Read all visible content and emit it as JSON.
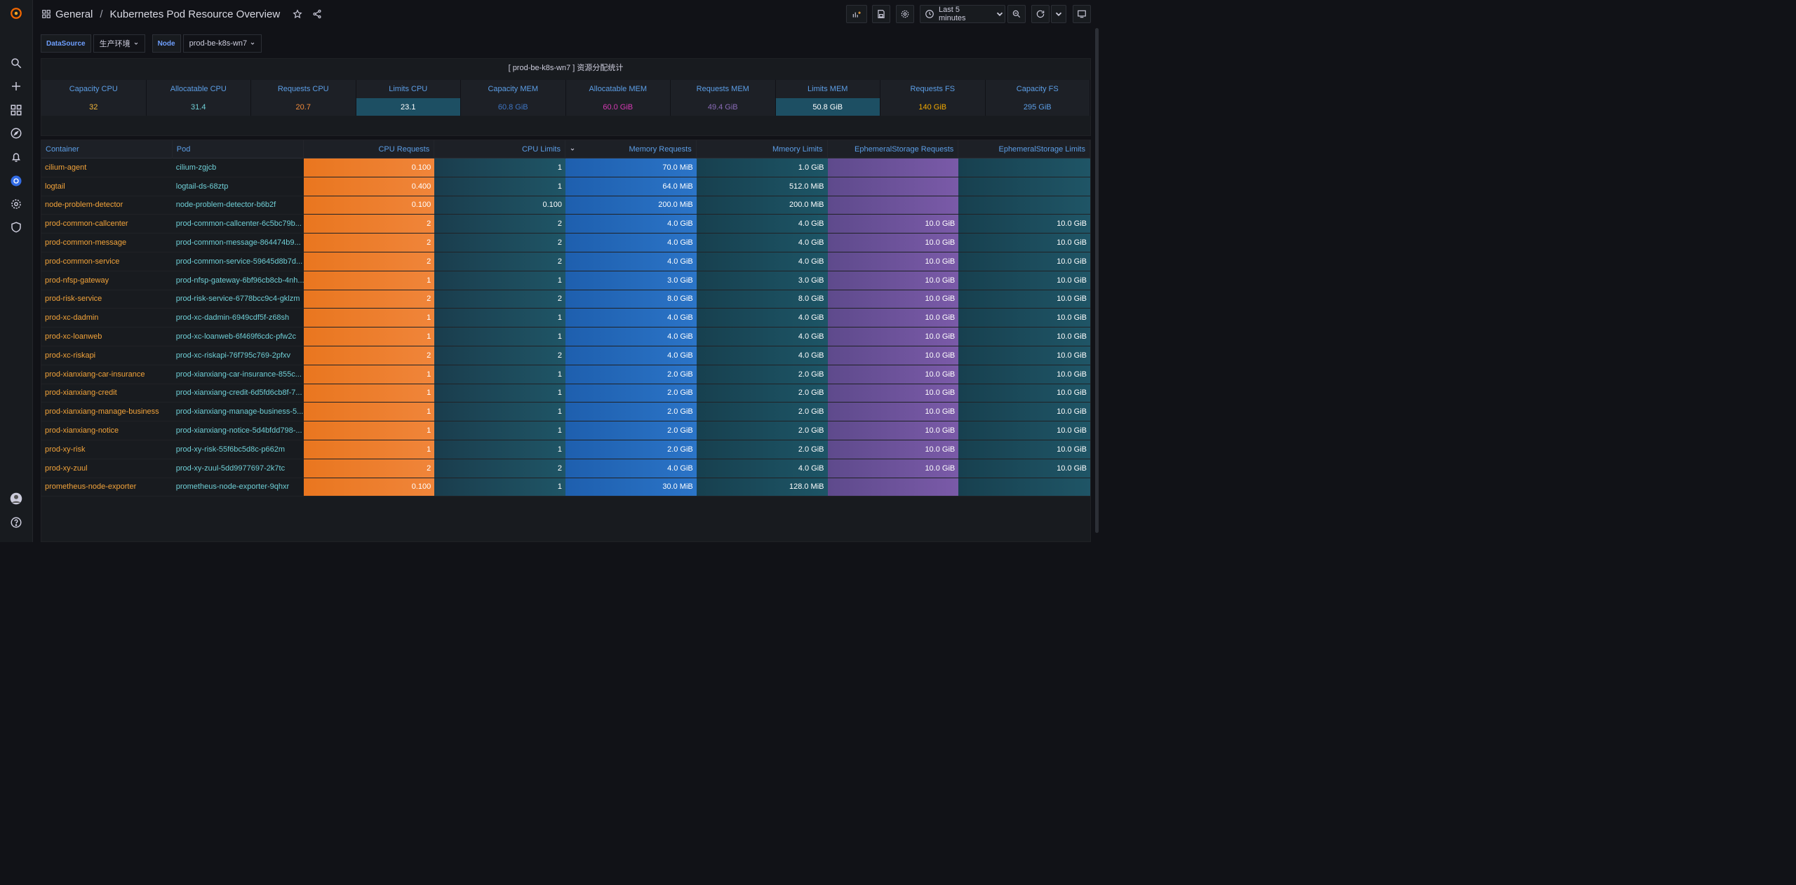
{
  "header": {
    "folder": "General",
    "separator": "/",
    "title": "Kubernetes Pod Resource Overview",
    "time_range": "Last 5 minutes"
  },
  "variables": [
    {
      "label": "DataSource",
      "value": "生产环境"
    },
    {
      "label": "Node",
      "value": "prod-be-k8s-wn7"
    }
  ],
  "stats_panel": {
    "title": "[ prod-be-k8s-wn7 ] 资源分配统计",
    "columns": [
      "Capacity CPU",
      "Allocatable CPU",
      "Requests CPU",
      "Limits CPU",
      "Capacity MEM",
      "Allocatable MEM",
      "Requests MEM",
      "Limits MEM",
      "Requests FS",
      "Capacity FS"
    ],
    "values": [
      "32",
      "31.4",
      "20.7",
      "23.1",
      "60.8 GiB",
      "60.0 GiB",
      "49.4 GiB",
      "50.8 GiB",
      "140 GiB",
      "295 GiB"
    ],
    "value_colors": [
      "#f2b53a",
      "#6fcfd6",
      "#f08a3a",
      "#ffffff",
      "#3e74c2",
      "#d63ab4",
      "#8a6bb8",
      "#ffffff",
      "#f2a900",
      "#5c9ee6"
    ]
  },
  "table": {
    "columns": [
      "Container",
      "Pod",
      "CPU Requests",
      "CPU Limits",
      "Memory Requests",
      "Mmeory Limits",
      "EphemeralStorage Requests",
      "EphemeralStorage Limits"
    ],
    "rows": [
      [
        "cilium-agent",
        "cilium-zgjcb",
        "0.100",
        "1",
        "70.0 MiB",
        "1.0 GiB",
        "",
        ""
      ],
      [
        "logtail",
        "logtail-ds-68ztp",
        "0.400",
        "1",
        "64.0 MiB",
        "512.0 MiB",
        "",
        ""
      ],
      [
        "node-problem-detector",
        "node-problem-detector-b6b2f",
        "0.100",
        "0.100",
        "200.0 MiB",
        "200.0 MiB",
        "",
        ""
      ],
      [
        "prod-common-callcenter",
        "prod-common-callcenter-6c5bc79b...",
        "2",
        "2",
        "4.0 GiB",
        "4.0 GiB",
        "10.0 GiB",
        "10.0 GiB"
      ],
      [
        "prod-common-message",
        "prod-common-message-864474b9...",
        "2",
        "2",
        "4.0 GiB",
        "4.0 GiB",
        "10.0 GiB",
        "10.0 GiB"
      ],
      [
        "prod-common-service",
        "prod-common-service-59645d8b7d...",
        "2",
        "2",
        "4.0 GiB",
        "4.0 GiB",
        "10.0 GiB",
        "10.0 GiB"
      ],
      [
        "prod-nfsp-gateway",
        "prod-nfsp-gateway-6bf96cb8cb-4nh...",
        "1",
        "1",
        "3.0 GiB",
        "3.0 GiB",
        "10.0 GiB",
        "10.0 GiB"
      ],
      [
        "prod-risk-service",
        "prod-risk-service-6778bcc9c4-gklzm",
        "2",
        "2",
        "8.0 GiB",
        "8.0 GiB",
        "10.0 GiB",
        "10.0 GiB"
      ],
      [
        "prod-xc-dadmin",
        "prod-xc-dadmin-6949cdf5f-z68sh",
        "1",
        "1",
        "4.0 GiB",
        "4.0 GiB",
        "10.0 GiB",
        "10.0 GiB"
      ],
      [
        "prod-xc-loanweb",
        "prod-xc-loanweb-6f469f6cdc-pfw2c",
        "1",
        "1",
        "4.0 GiB",
        "4.0 GiB",
        "10.0 GiB",
        "10.0 GiB"
      ],
      [
        "prod-xc-riskapi",
        "prod-xc-riskapi-76f795c769-2pfxv",
        "2",
        "2",
        "4.0 GiB",
        "4.0 GiB",
        "10.0 GiB",
        "10.0 GiB"
      ],
      [
        "prod-xianxiang-car-insurance",
        "prod-xianxiang-car-insurance-855c...",
        "1",
        "1",
        "2.0 GiB",
        "2.0 GiB",
        "10.0 GiB",
        "10.0 GiB"
      ],
      [
        "prod-xianxiang-credit",
        "prod-xianxiang-credit-6d5fd6cb8f-7...",
        "1",
        "1",
        "2.0 GiB",
        "2.0 GiB",
        "10.0 GiB",
        "10.0 GiB"
      ],
      [
        "prod-xianxiang-manage-business",
        "prod-xianxiang-manage-business-5...",
        "1",
        "1",
        "2.0 GiB",
        "2.0 GiB",
        "10.0 GiB",
        "10.0 GiB"
      ],
      [
        "prod-xianxiang-notice",
        "prod-xianxiang-notice-5d4bfdd798-...",
        "1",
        "1",
        "2.0 GiB",
        "2.0 GiB",
        "10.0 GiB",
        "10.0 GiB"
      ],
      [
        "prod-xy-risk",
        "prod-xy-risk-55f6bc5d8c-p662m",
        "1",
        "1",
        "2.0 GiB",
        "2.0 GiB",
        "10.0 GiB",
        "10.0 GiB"
      ],
      [
        "prod-xy-zuul",
        "prod-xy-zuul-5dd9977697-2k7tc",
        "2",
        "2",
        "4.0 GiB",
        "4.0 GiB",
        "10.0 GiB",
        "10.0 GiB"
      ],
      [
        "prometheus-node-exporter",
        "prometheus-node-exporter-9qhxr",
        "0.100",
        "1",
        "30.0 MiB",
        "128.0 MiB",
        "",
        ""
      ]
    ]
  }
}
